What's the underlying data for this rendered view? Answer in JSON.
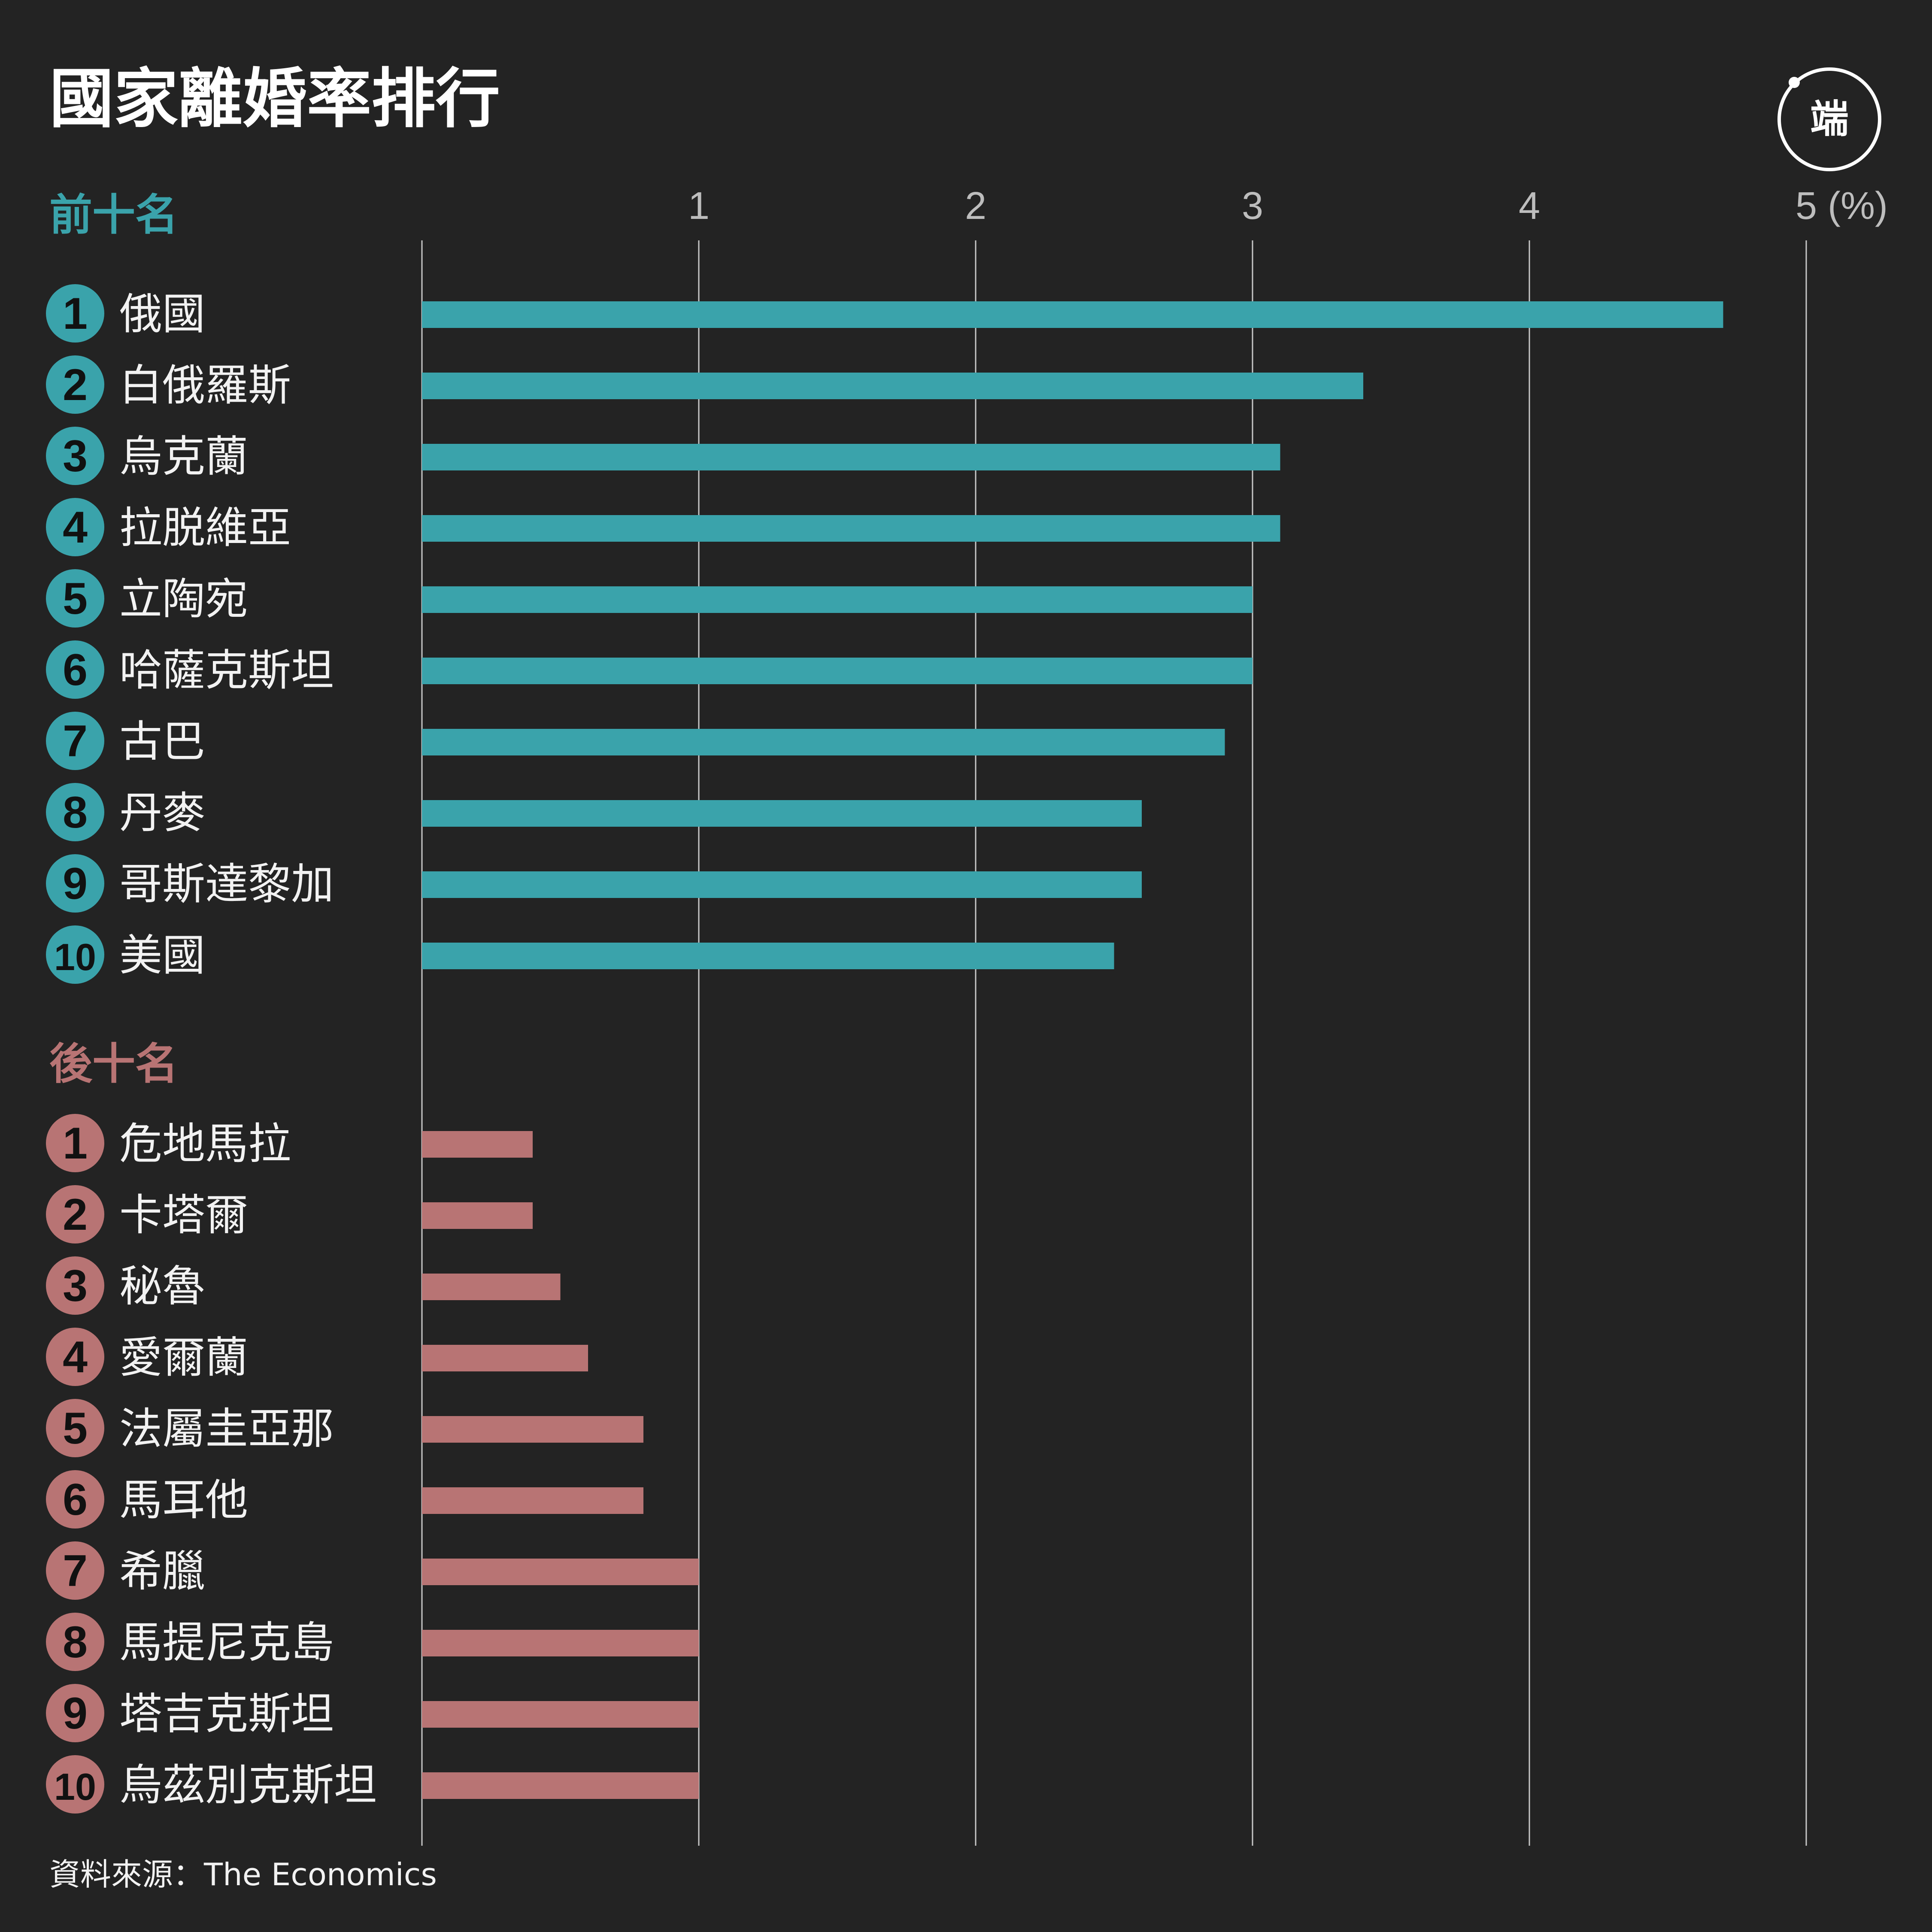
{
  "header": {
    "title": "國家離婚率排行",
    "logo_text": "端"
  },
  "source_text": "資料來源：The Economics",
  "colors": {
    "background": "#232323",
    "top_bar": "#3aa3ab",
    "bottom_bar": "#b87474",
    "gridline": "#c8c8c8"
  },
  "chart_data": {
    "type": "bar",
    "orientation": "horizontal",
    "unit": "(%)",
    "xlim": [
      0,
      5
    ],
    "xticks": [
      1,
      2,
      3,
      4,
      5
    ],
    "xtick_labels": [
      "1",
      "2",
      "3",
      "4",
      "5 (%)"
    ],
    "grid": true,
    "groups": [
      {
        "name": "前十名",
        "color": "#3aa3ab",
        "ranks": [
          "1",
          "2",
          "3",
          "4",
          "5",
          "6",
          "7",
          "8",
          "9",
          "10"
        ],
        "categories": [
          "俄國",
          "白俄羅斯",
          "烏克蘭",
          "拉脱維亞",
          "立陶宛",
          "哈薩克斯坦",
          "古巴",
          "丹麥",
          "哥斯達黎加",
          "美國"
        ],
        "values": [
          4.7,
          3.4,
          3.1,
          3.1,
          3.0,
          3.0,
          2.9,
          2.6,
          2.6,
          2.5
        ]
      },
      {
        "name": "後十名",
        "color": "#b87474",
        "ranks": [
          "1",
          "2",
          "3",
          "4",
          "5",
          "6",
          "7",
          "8",
          "9",
          "10"
        ],
        "categories": [
          "危地馬拉",
          "卡塔爾",
          "秘魯",
          "愛爾蘭",
          "法屬圭亞那",
          "馬耳他",
          "希臘",
          "馬提尼克島",
          "塔吉克斯坦",
          "烏茲別克斯坦"
        ],
        "values": [
          0.4,
          0.4,
          0.5,
          0.6,
          0.8,
          0.8,
          1.0,
          1.0,
          1.0,
          1.0
        ]
      }
    ]
  }
}
